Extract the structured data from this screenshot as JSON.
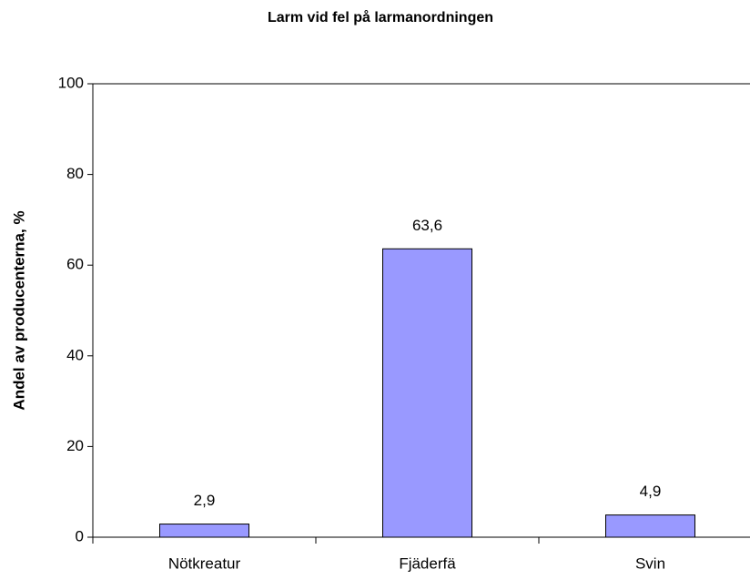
{
  "chart_data": {
    "type": "bar",
    "title": "Larm vid fel på larmanordningen",
    "y_label": "Andel av producenterna, %",
    "categories": [
      "Nötkreatur",
      "Fjäderfä",
      "Svin"
    ],
    "values": [
      2.9,
      63.6,
      4.9
    ],
    "value_labels": [
      "2,9",
      "63,6",
      "4,9"
    ],
    "color": "#9999ff",
    "ylim": [
      0,
      100
    ],
    "yticks": [
      0,
      20,
      40,
      60,
      80,
      100
    ],
    "grid": false
  }
}
